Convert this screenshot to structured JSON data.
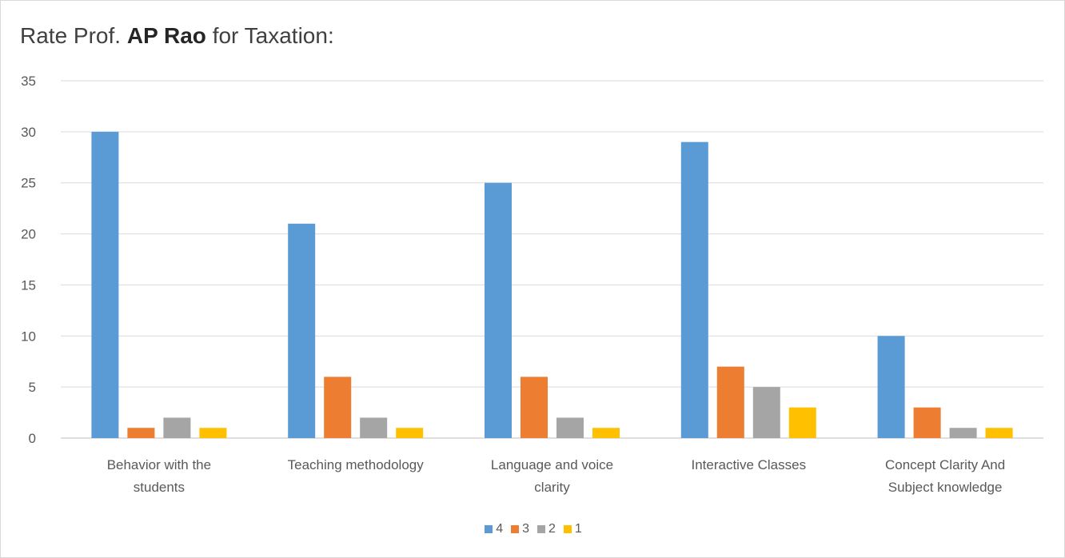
{
  "chart_data": {
    "type": "bar",
    "title_parts": [
      "Rate Prof. ",
      "AP Rao",
      " for Taxation:"
    ],
    "categories": [
      [
        "Behavior with the",
        "students"
      ],
      [
        "Teaching methodology"
      ],
      [
        "Language and voice",
        "clarity"
      ],
      [
        "Interactive Classes"
      ],
      [
        "Concept Clarity And",
        "Subject knowledge"
      ]
    ],
    "series": [
      {
        "name": "4",
        "color": "#5b9bd5",
        "values": [
          30,
          21,
          25,
          29,
          10
        ]
      },
      {
        "name": "3",
        "color": "#ed7d31",
        "values": [
          1,
          6,
          6,
          7,
          3
        ]
      },
      {
        "name": "2",
        "color": "#a5a5a5",
        "values": [
          2,
          2,
          2,
          5,
          1
        ]
      },
      {
        "name": "1",
        "color": "#ffc000",
        "values": [
          1,
          1,
          1,
          3,
          1
        ]
      }
    ],
    "ylim": [
      0,
      35
    ],
    "yticks": [
      0,
      5,
      10,
      15,
      20,
      25,
      30,
      35
    ],
    "grid": true,
    "legend_position": "bottom"
  }
}
